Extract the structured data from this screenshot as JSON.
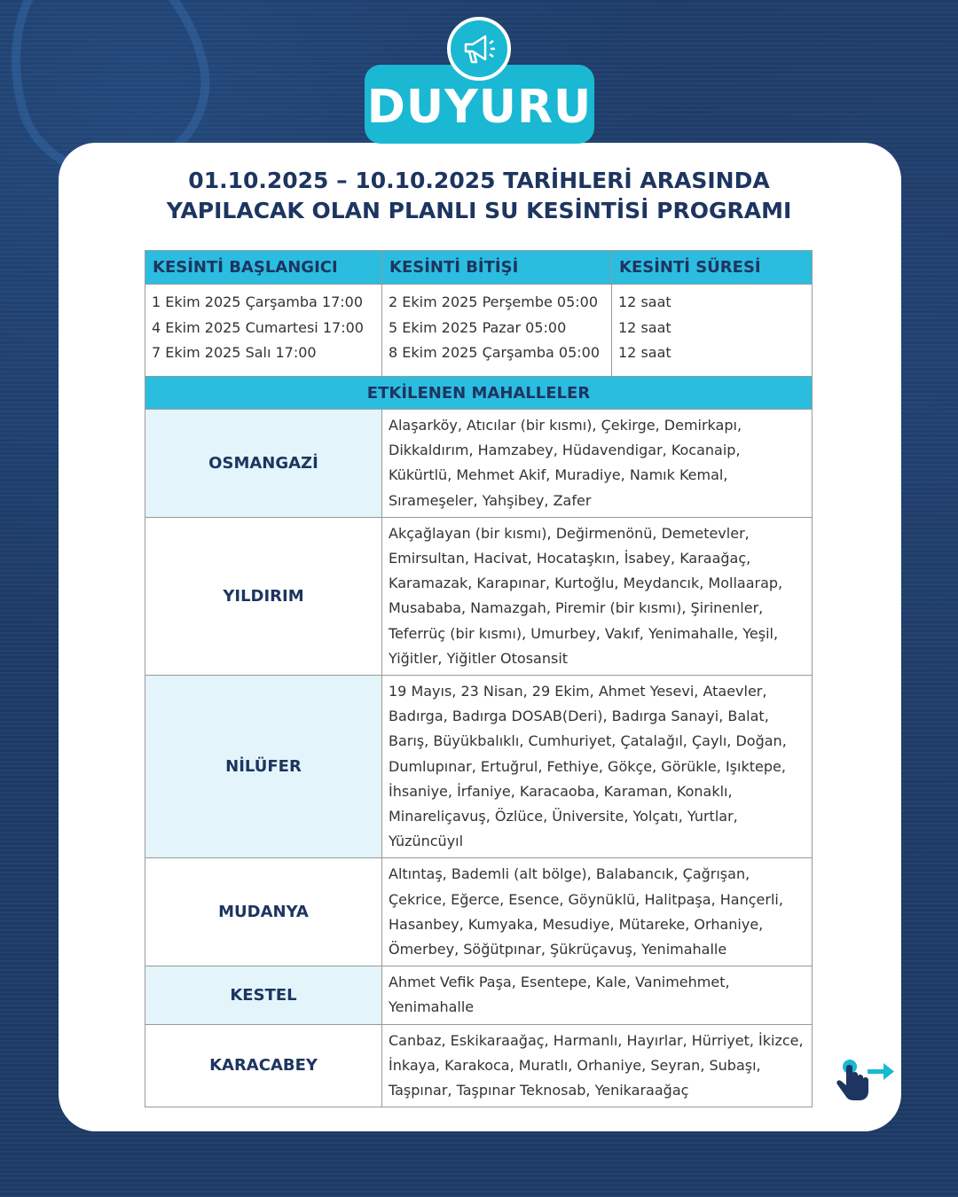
{
  "header": {
    "badge": "DUYURU",
    "icon": "megaphone-icon"
  },
  "title": {
    "line1": "01.10.2025 – 10.10.2025 TARİHLERİ ARASINDA",
    "line2": "YAPILACAK OLAN PLANLI SU KESİNTİSİ PROGRAMI"
  },
  "schedule": {
    "columns": [
      "KESİNTİ BAŞLANGICI",
      "KESİNTİ BİTİŞİ",
      "KESİNTİ SÜRESİ"
    ],
    "start": [
      "1 Ekim 2025 Çarşamba 17:00",
      "4 Ekim 2025 Cumartesi 17:00",
      "7 Ekim 2025 Salı 17:00"
    ],
    "end": [
      "2 Ekim 2025 Perşembe 05:00",
      "5 Ekim 2025 Pazar 05:00",
      "8 Ekim 2025 Çarşamba 05:00"
    ],
    "duration": [
      "12 saat",
      "12 saat",
      "12 saat"
    ]
  },
  "affected": {
    "heading": "ETKİLENEN MAHALLELER",
    "regions": [
      {
        "name": "OSMANGAZİ",
        "areas": "Alaşarköy, Atıcılar (bir kısmı), Çekirge, Demirkapı, Dikkaldırım, Hamzabey, Hüdavendigar, Kocanaip, Kükürtlü, Mehmet Akif, Muradiye, Namık Kemal, Sırameşeler, Yahşibey, Zafer"
      },
      {
        "name": "YILDIRIM",
        "areas": "Akçağlayan (bir kısmı), Değirmenönü, Demetevler, Emirsultan, Hacivat, Hocataşkın, İsabey, Karaağaç, Karamazak, Karapınar, Kurtoğlu, Meydancık, Mollaarap, Musababa, Namazgah, Piremir (bir kısmı), Şirinenler, Teferrüç (bir kısmı), Umurbey, Vakıf, Yenimahalle, Yeşil, Yiğitler, Yiğitler Otosansit"
      },
      {
        "name": "NİLÜFER",
        "areas": "19 Mayıs, 23 Nisan, 29 Ekim, Ahmet Yesevi, Ataevler, Badırga, Badırga DOSAB(Deri), Badırga Sanayi, Balat, Barış, Büyükbalıklı, Cumhuriyet, Çatalağıl, Çaylı, Doğan, Dumlupınar, Ertuğrul, Fethiye, Gökçe, Görükle, Işıktepe, İhsaniye, İrfaniye, Karacaoba, Karaman, Konaklı, Minareliçavuş, Özlüce, Üniversite, Yolçatı, Yurtlar, Yüzüncüyıl"
      },
      {
        "name": "MUDANYA",
        "areas": "Altıntaş, Bademli (alt bölge), Balabancık, Çağrışan, Çekrice, Eğerce, Esence, Göynüklü, Halitpaşa, Hançerli, Hasanbey, Kumyaka, Mesudiye, Mütareke, Orhaniye, Ömerbey, Söğütpınar, Şükrüçavuş, Yenimahalle"
      },
      {
        "name": "KESTEL",
        "areas": "Ahmet Vefik Paşa, Esentepe, Kale, Vanimehmet, Yenimahalle"
      },
      {
        "name": "KARACABEY",
        "areas": "Canbaz, Eskikaraağaç, Harmanlı, Hayırlar, Hürriyet, İkizce, İnkaya, Karakoca, Muratlı, Orhaniye, Seyran, Subaşı, Taşpınar, Taşpınar Teknosab, Yenikaraağaç"
      }
    ]
  },
  "colors": {
    "background": "#1d3a66",
    "accent": "#1ab8d3",
    "header_cell": "#2bbde0",
    "light_cell": "#e3f5fa",
    "title": "#1d3560"
  },
  "footer": {
    "icon": "swipe-right-icon"
  }
}
